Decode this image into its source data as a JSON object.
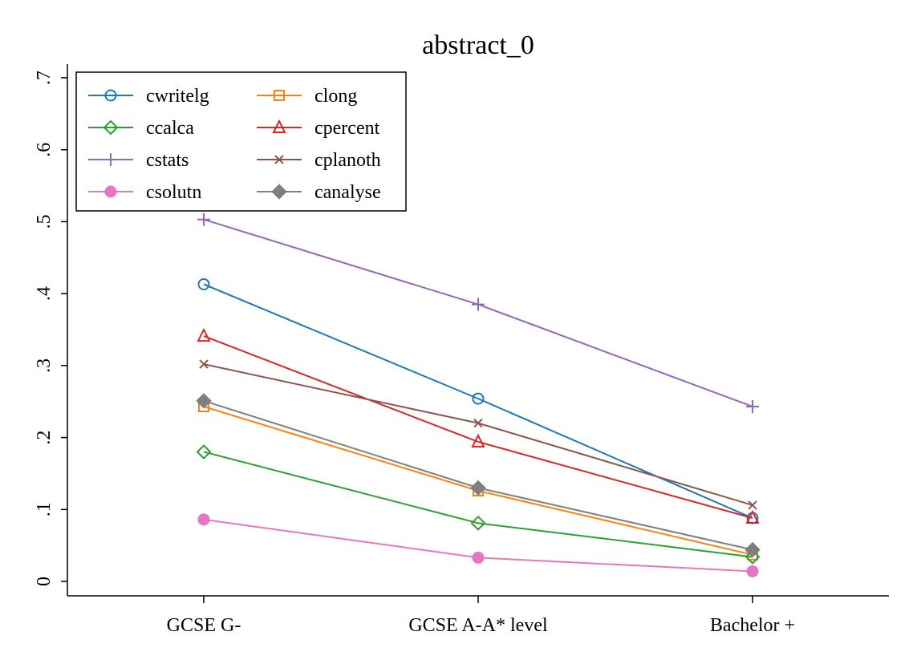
{
  "chart_data": {
    "type": "line",
    "title": "abstract_0",
    "xlabel": "",
    "ylabel": "",
    "categories": [
      "GCSE G-",
      "GCSE A-A* level",
      "Bachelor +"
    ],
    "ylim": [
      0,
      0.7
    ],
    "yticks": [
      0,
      0.1,
      0.2,
      0.3,
      0.4,
      0.5,
      0.6,
      0.7
    ],
    "ytick_labels": [
      "0",
      ".1",
      ".2",
      ".3",
      ".4",
      ".5",
      ".6",
      ".7"
    ],
    "grid": false,
    "legend_position": "top-left",
    "series": [
      {
        "name": "cwritelg",
        "color": "#1f77b4",
        "marker": "circle-hollow",
        "values": [
          0.413,
          0.254,
          0.088
        ]
      },
      {
        "name": "clong",
        "color": "#ff7f0e",
        "marker": "square-hollow",
        "values": [
          0.243,
          0.126,
          0.037
        ]
      },
      {
        "name": "ccalca",
        "color": "#2ca02c",
        "marker": "diamond-hollow",
        "values": [
          0.18,
          0.081,
          0.034
        ]
      },
      {
        "name": "cpercent",
        "color": "#d62728",
        "marker": "triangle-hollow",
        "values": [
          0.341,
          0.194,
          0.088
        ]
      },
      {
        "name": "cstats",
        "color": "#9467bd",
        "marker": "plus",
        "values": [
          0.503,
          0.385,
          0.243
        ]
      },
      {
        "name": "cplanoth",
        "color": "#8c564b",
        "marker": "x",
        "values": [
          0.302,
          0.22,
          0.106
        ]
      },
      {
        "name": "csolutn",
        "color": "#e377c2",
        "marker": "circle-filled",
        "values": [
          0.086,
          0.033,
          0.014
        ]
      },
      {
        "name": "canalyse",
        "color": "#7f7f7f",
        "marker": "diamond-filled",
        "values": [
          0.251,
          0.13,
          0.044
        ]
      }
    ]
  }
}
